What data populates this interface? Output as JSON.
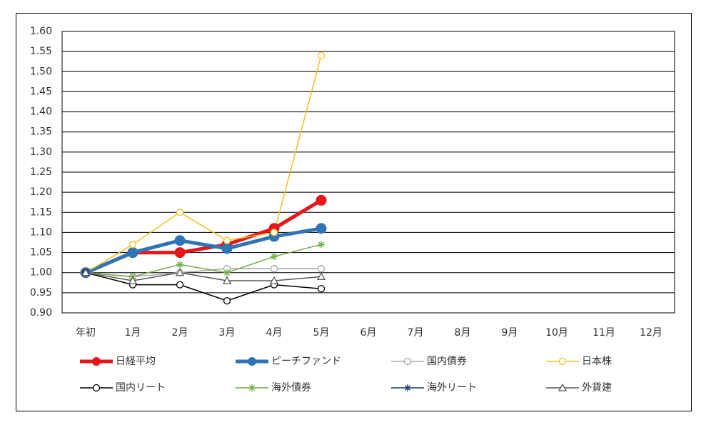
{
  "chart_data": {
    "type": "line",
    "categories": [
      "年初",
      "1月",
      "2月",
      "3月",
      "4月",
      "5月",
      "6月",
      "7月",
      "8月",
      "9月",
      "10月",
      "11月",
      "12月"
    ],
    "ylim": [
      0.9,
      1.6
    ],
    "yticks": [
      {
        "value": 0.9,
        "label": "0.90"
      },
      0.95,
      {
        "value": 1.0,
        "label": "1.00"
      },
      1.05,
      {
        "value": 1.1,
        "label": "1.10"
      },
      1.15,
      {
        "value": 1.2,
        "label": "1.20"
      },
      1.25,
      {
        "value": 1.3,
        "label": "1.30"
      },
      1.35,
      {
        "value": 1.4,
        "label": "1.40"
      },
      1.45,
      {
        "value": 1.5,
        "label": "1.50"
      },
      1.55,
      {
        "value": 1.6,
        "label": "1.60"
      }
    ],
    "grid": true,
    "legend": "bottom",
    "series": [
      {
        "name": "日経平均",
        "color": "#e8151b",
        "marker": "filled-circle",
        "line_width": 5,
        "values": [
          1.0,
          1.05,
          1.05,
          1.07,
          1.11,
          1.18,
          null,
          null,
          null,
          null,
          null,
          null,
          null
        ]
      },
      {
        "name": "ピーチファンド",
        "color": "#2e75b6",
        "marker": "filled-circle",
        "line_width": 5,
        "values": [
          1.0,
          1.05,
          1.08,
          1.06,
          1.09,
          1.11,
          null,
          null,
          null,
          null,
          null,
          null,
          null
        ]
      },
      {
        "name": "国内債券",
        "color": "#a5a5a5",
        "marker": "circle",
        "line_width": 1.5,
        "values": [
          1.0,
          0.99,
          1.0,
          1.01,
          1.01,
          1.01,
          null,
          null,
          null,
          null,
          null,
          null,
          null
        ]
      },
      {
        "name": "日本株",
        "color": "#f0c020",
        "marker": "circle",
        "line_width": 1.5,
        "values": [
          1.0,
          1.07,
          1.15,
          1.08,
          1.1,
          1.54,
          null,
          null,
          null,
          null,
          null,
          null,
          null
        ]
      },
      {
        "name": "国内リート",
        "color": "#000000",
        "marker": "circle",
        "line_width": 1.5,
        "values": [
          1.0,
          0.97,
          0.97,
          0.93,
          0.97,
          0.96,
          null,
          null,
          null,
          null,
          null,
          null,
          null
        ]
      },
      {
        "name": "海外債券",
        "color": "#70ad47",
        "marker": "star",
        "line_width": 1.5,
        "values": [
          1.0,
          0.99,
          1.02,
          1.0,
          1.04,
          1.07,
          null,
          null,
          null,
          null,
          null,
          null,
          null
        ]
      },
      {
        "name": "海外リート",
        "color": "#1f3864",
        "marker": "star",
        "line_width": 1.5,
        "values": [
          1.0,
          null,
          null,
          null,
          null,
          null,
          null,
          null,
          null,
          null,
          null,
          null,
          null
        ]
      },
      {
        "name": "外貨建",
        "color": "#595959",
        "marker": "triangle",
        "line_width": 1.5,
        "values": [
          1.0,
          0.98,
          1.0,
          0.98,
          0.98,
          0.99,
          null,
          null,
          null,
          null,
          null,
          null,
          null
        ]
      }
    ]
  }
}
